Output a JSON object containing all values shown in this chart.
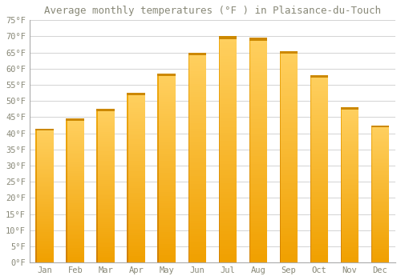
{
  "title": "Average monthly temperatures (°F ) in Plaisance-du-Touch",
  "months": [
    "Jan",
    "Feb",
    "Mar",
    "Apr",
    "May",
    "Jun",
    "Jul",
    "Aug",
    "Sep",
    "Oct",
    "Nov",
    "Dec"
  ],
  "values": [
    41.5,
    44.5,
    47.5,
    52.5,
    58.5,
    65.0,
    70.0,
    69.5,
    65.5,
    58.0,
    48.0,
    42.5
  ],
  "ylim": [
    0,
    75
  ],
  "yticks": [
    0,
    5,
    10,
    15,
    20,
    25,
    30,
    35,
    40,
    45,
    50,
    55,
    60,
    65,
    70,
    75
  ],
  "ytick_labels": [
    "0°F",
    "5°F",
    "10°F",
    "15°F",
    "20°F",
    "25°F",
    "30°F",
    "35°F",
    "40°F",
    "45°F",
    "50°F",
    "55°F",
    "60°F",
    "65°F",
    "70°F",
    "75°F"
  ],
  "bg_color": "#FFFFFF",
  "grid_color": "#CCCCCC",
  "font_color": "#888877",
  "title_fontsize": 9,
  "tick_fontsize": 7.5,
  "bar_width": 0.6,
  "bar_color_bottom": "#F5A800",
  "bar_color_mid": "#FFBB20",
  "bar_color_top": "#FFD060",
  "bar_left_edge": "#D08800"
}
